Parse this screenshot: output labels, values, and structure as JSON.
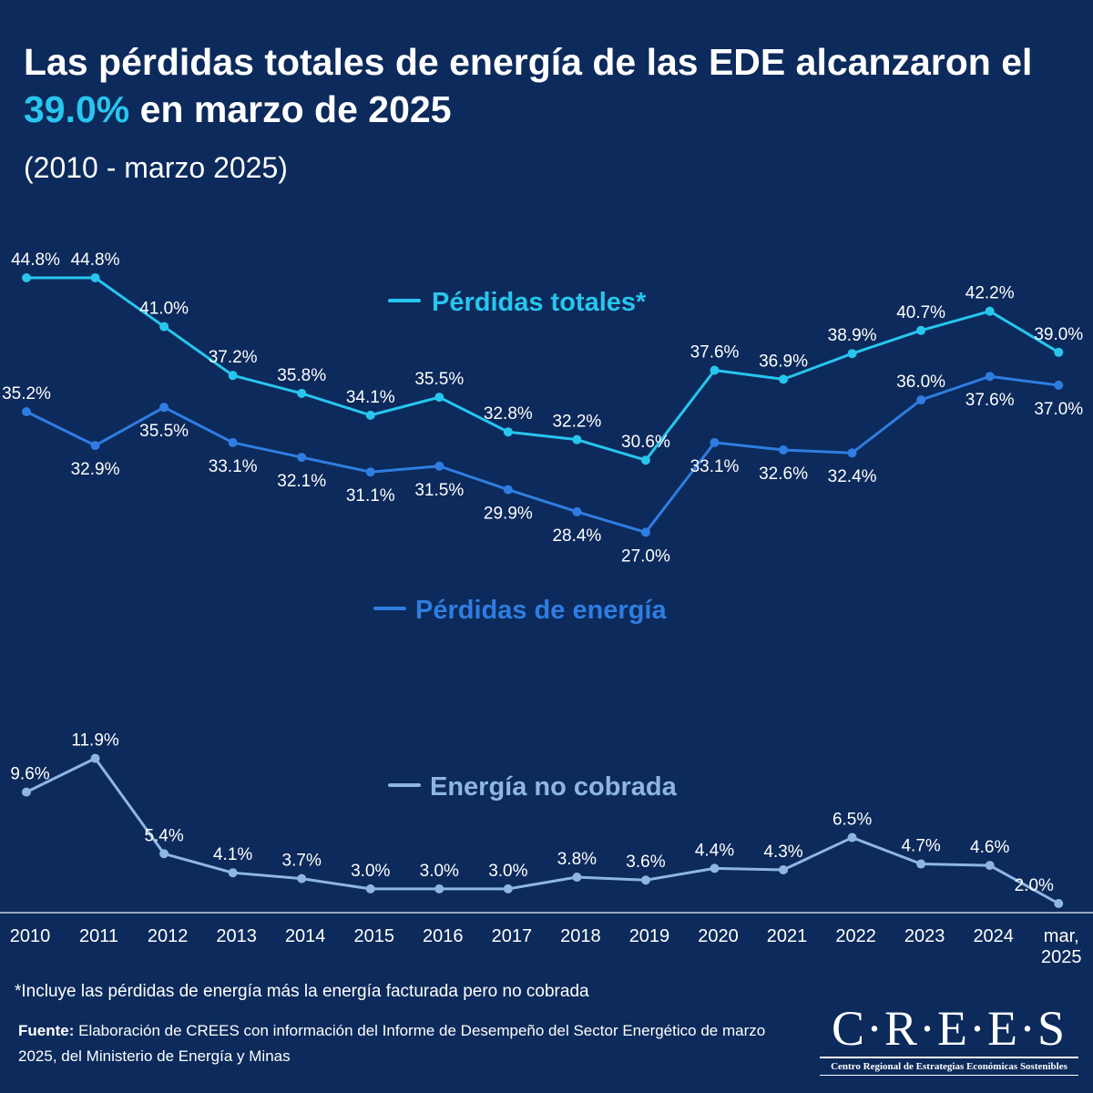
{
  "header": {
    "title_part1": "Las pérdidas totales de energía de las EDE alcanzaron el",
    "title_highlight": "39.0%",
    "title_part2": " en marzo de 2025",
    "subtitle": "(2010 - marzo 2025)"
  },
  "colors": {
    "background": "#0c2a5b",
    "perdidas_totales": "#27c6ee",
    "perdidas_energia": "#2f7de1",
    "energia_no_cobrada": "#8eb6e4",
    "highlight": "#27c6ee"
  },
  "chart_data": {
    "type": "line",
    "categories": [
      "2010",
      "2011",
      "2012",
      "2013",
      "2014",
      "2015",
      "2016",
      "2017",
      "2018",
      "2019",
      "2020",
      "2021",
      "2022",
      "2023",
      "2024",
      "mar, 2025"
    ],
    "series": [
      {
        "name": "Pérdidas totales*",
        "values": [
          44.8,
          44.8,
          41.0,
          37.2,
          35.8,
          34.1,
          35.5,
          32.8,
          32.2,
          30.6,
          37.6,
          36.9,
          38.9,
          40.7,
          42.2,
          39.0
        ],
        "labels": [
          "44.8%",
          "44.8%",
          "41.0%",
          "37.2%",
          "35.8%",
          "34.1%",
          "35.5%",
          "32.8%",
          "32.2%",
          "30.6%",
          "37.6%",
          "36.9%",
          "38.9%",
          "40.7%",
          "42.2%",
          "39.0%"
        ]
      },
      {
        "name": "Pérdidas de energía",
        "values": [
          35.2,
          32.9,
          35.5,
          33.1,
          32.1,
          31.1,
          31.5,
          29.9,
          28.4,
          27.0,
          33.1,
          32.6,
          32.4,
          36.0,
          37.6,
          37.0
        ],
        "labels": [
          "35.2%",
          "32.9%",
          "35.5%",
          "33.1%",
          "32.1%",
          "31.1%",
          "31.5%",
          "29.9%",
          "28.4%",
          "27.0%",
          "33.1%",
          "32.6%",
          "32.4%",
          "36.0%",
          "37.6%",
          "37.0%"
        ]
      },
      {
        "name": "Energía no cobrada",
        "values": [
          9.6,
          11.9,
          5.4,
          4.1,
          3.7,
          3.0,
          3.0,
          3.0,
          3.8,
          3.6,
          4.4,
          4.3,
          6.5,
          4.7,
          4.6,
          2.0
        ],
        "labels": [
          "9.6%",
          "11.9%",
          "5.4%",
          "4.1%",
          "3.7%",
          "3.0%",
          "3.0%",
          "3.0%",
          "3.8%",
          "3.6%",
          "4.4%",
          "4.3%",
          "6.5%",
          "4.7%",
          "4.6%",
          "2.0%"
        ]
      }
    ],
    "legend_placement": "inline, next to each line",
    "grid": false
  },
  "footnote": "*Incluye las pérdidas de energía más la energía facturada pero no cobrada",
  "source": {
    "label": "Fuente:",
    "text": " Elaboración de CREES con información del Informe de Desempeño del Sector Energético de marzo 2025, del Ministerio de Energía y Minas"
  },
  "logo": {
    "word": "C·R·E·E·S",
    "tagline": "Centro Regional de Estrategias Económicas Sostenibles"
  }
}
